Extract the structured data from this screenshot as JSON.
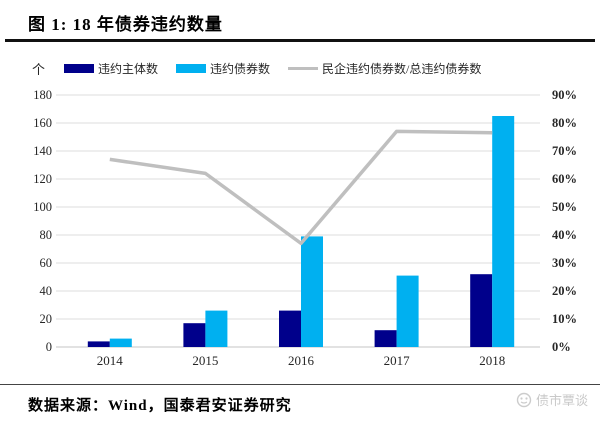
{
  "header": {
    "title": "图 1: 18 年债券违约数量"
  },
  "chart_data": {
    "type": "bar",
    "categories": [
      "2014",
      "2015",
      "2016",
      "2017",
      "2018"
    ],
    "series": [
      {
        "name": "违约主体数",
        "type": "bar",
        "axis": "left",
        "color": "#00008B",
        "values": [
          4,
          17,
          26,
          12,
          52
        ]
      },
      {
        "name": "违约债券数",
        "type": "bar",
        "axis": "left",
        "color": "#00B0F0",
        "values": [
          6,
          26,
          79,
          51,
          165
        ]
      },
      {
        "name": "民企违约债券数/总违约债券数",
        "type": "line",
        "axis": "right",
        "color": "#BFBFBF",
        "values": [
          67,
          62,
          37,
          77,
          76.5
        ]
      }
    ],
    "left_axis": {
      "unit": "个",
      "min": 0,
      "max": 180,
      "step": 20
    },
    "right_axis": {
      "min": 0,
      "max": 90,
      "step": 10,
      "suffix": "%"
    },
    "grid": true,
    "legend_position": "top",
    "colors": {
      "gridline": "#DCDCDC",
      "baseline": "#C6C6C6",
      "tick_text": "#262626"
    }
  },
  "footer": {
    "source": "数据来源：Wind，国泰君安证券研究",
    "watermark": "债市覃谈"
  }
}
